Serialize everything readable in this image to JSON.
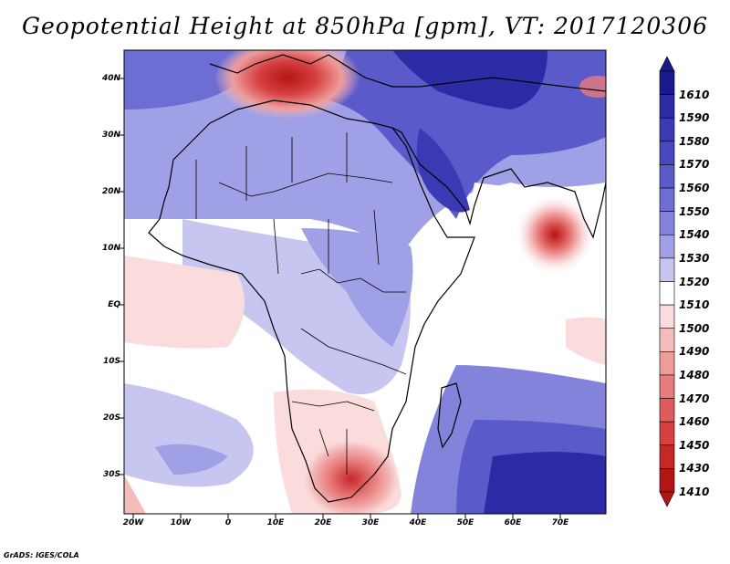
{
  "title": "Geopotential Height at 850hPa [gpm], VT: 2017120306",
  "footer": "GrADS: IGES/COLA",
  "lat_labels": [
    "40N",
    "30N",
    "20N",
    "10N",
    "EQ",
    "10S",
    "20S",
    "30S"
  ],
  "lon_labels": [
    "20W",
    "10W",
    "0",
    "10E",
    "20E",
    "30E",
    "40E",
    "50E",
    "60E",
    "70E"
  ],
  "colorbar": {
    "levels": [
      "1610",
      "1590",
      "1580",
      "1570",
      "1560",
      "1550",
      "1540",
      "1530",
      "1520",
      "1510",
      "1500",
      "1490",
      "1480",
      "1470",
      "1460",
      "1450",
      "1430",
      "1410"
    ],
    "colors": [
      "#1a1a8c",
      "#2b2ba6",
      "#3a3ab4",
      "#4848c0",
      "#5a5acb",
      "#6d6dd3",
      "#8383dc",
      "#a0a0e6",
      "#c6c6f1",
      "#ffffff",
      "#fbdcdc",
      "#f5bcbc",
      "#ef9c9c",
      "#e87c7c",
      "#e05c5c",
      "#d64040",
      "#c62828",
      "#b31515"
    ]
  },
  "map_colors": {
    "deep_blue": "#2b2ba6",
    "mid_blue": "#5a5acb",
    "light_blue": "#a0a0e6",
    "pale_blue": "#c6c6f1",
    "white": "#ffffff",
    "pale_red": "#fbdcdc",
    "light_red": "#f5bcbc",
    "mid_red": "#e05c5c",
    "deep_red": "#b31515"
  }
}
